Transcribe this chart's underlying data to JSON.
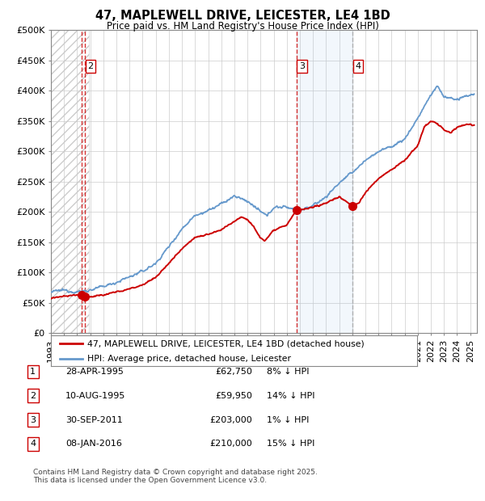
{
  "title": "47, MAPLEWELL DRIVE, LEICESTER, LE4 1BD",
  "subtitle": "Price paid vs. HM Land Registry's House Price Index (HPI)",
  "ylim": [
    0,
    500000
  ],
  "yticks": [
    0,
    50000,
    100000,
    150000,
    200000,
    250000,
    300000,
    350000,
    400000,
    450000,
    500000
  ],
  "ytick_labels": [
    "£0",
    "£50K",
    "£100K",
    "£150K",
    "£200K",
    "£250K",
    "£300K",
    "£350K",
    "£400K",
    "£450K",
    "£500K"
  ],
  "xlim_start": 1993.0,
  "xlim_end": 2025.5,
  "transactions": [
    {
      "id": 1,
      "date_num": 1995.32,
      "price": 62750,
      "label": "1"
    },
    {
      "id": 2,
      "date_num": 1995.61,
      "price": 59950,
      "label": "2"
    },
    {
      "id": 3,
      "date_num": 2011.75,
      "price": 203000,
      "label": "3"
    },
    {
      "id": 4,
      "date_num": 2016.03,
      "price": 210000,
      "label": "4"
    }
  ],
  "table_rows": [
    {
      "num": "1",
      "date": "28-APR-1995",
      "price": "£62,750",
      "note": "8% ↓ HPI"
    },
    {
      "num": "2",
      "date": "10-AUG-1995",
      "price": "£59,950",
      "note": "14% ↓ HPI"
    },
    {
      "num": "3",
      "date": "30-SEP-2011",
      "price": "£203,000",
      "note": "1% ↓ HPI"
    },
    {
      "num": "4",
      "date": "08-JAN-2016",
      "price": "£210,000",
      "note": "15% ↓ HPI"
    }
  ],
  "footer": "Contains HM Land Registry data © Crown copyright and database right 2025.\nThis data is licensed under the Open Government Licence v3.0.",
  "legend_entries": [
    {
      "label": "47, MAPLEWELL DRIVE, LEICESTER, LE4 1BD (detached house)",
      "color": "#cc0000"
    },
    {
      "label": "HPI: Average price, detached house, Leicester",
      "color": "#6699cc"
    }
  ],
  "hatch_region_end": 1995.9,
  "blue_shade_start": 2011.75,
  "blue_shade_end": 2016.03,
  "bg_color": "#ffffff",
  "grid_color": "#cccccc",
  "red_color": "#cc0000",
  "blue_color": "#5588bb",
  "hpi_color": "#6699cc"
}
